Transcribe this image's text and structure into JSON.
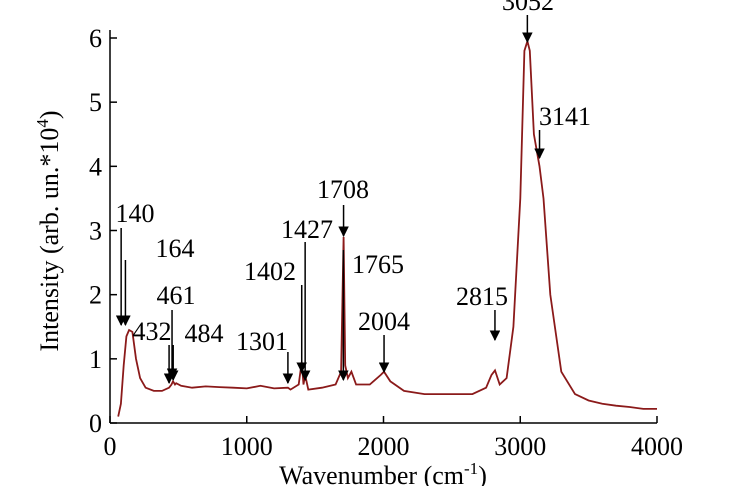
{
  "chart_data": {
    "type": "line",
    "x_label": {
      "text": "Wavenumber (cm",
      "sup": "-1",
      "end": ")"
    },
    "y_label": {
      "text": "Intensity (arb. un.*10",
      "sup": "4",
      "end": ")"
    },
    "x": [
      60,
      80,
      100,
      120,
      140,
      164,
      190,
      220,
      260,
      320,
      380,
      432,
      450,
      461,
      475,
      484,
      520,
      600,
      700,
      800,
      900,
      1000,
      1100,
      1200,
      1301,
      1320,
      1380,
      1402,
      1415,
      1427,
      1450,
      1550,
      1650,
      1690,
      1708,
      1720,
      1740,
      1765,
      1800,
      1900,
      1980,
      2004,
      2050,
      2150,
      2300,
      2500,
      2650,
      2750,
      2790,
      2815,
      2850,
      2900,
      2950,
      3000,
      3030,
      3052,
      3070,
      3100,
      3141,
      3170,
      3220,
      3300,
      3400,
      3500,
      3600,
      3700,
      3800,
      3900,
      4000
    ],
    "series": [
      {
        "color": "#8b1a1a",
        "values": [
          0.1,
          0.3,
          0.9,
          1.35,
          1.45,
          1.42,
          1.0,
          0.7,
          0.55,
          0.5,
          0.5,
          0.55,
          0.6,
          0.65,
          0.6,
          0.62,
          0.58,
          0.55,
          0.57,
          0.56,
          0.55,
          0.54,
          0.58,
          0.54,
          0.55,
          0.52,
          0.6,
          0.95,
          0.6,
          0.75,
          0.52,
          0.55,
          0.6,
          0.8,
          2.9,
          0.9,
          0.7,
          0.8,
          0.6,
          0.6,
          0.75,
          0.8,
          0.65,
          0.5,
          0.45,
          0.45,
          0.45,
          0.55,
          0.75,
          0.82,
          0.6,
          0.7,
          1.5,
          3.5,
          5.8,
          5.95,
          5.8,
          4.5,
          4.0,
          3.5,
          2.0,
          0.8,
          0.45,
          0.35,
          0.3,
          0.27,
          0.25,
          0.22,
          0.22
        ]
      }
    ],
    "annotations": [
      140,
      164,
      432,
      461,
      484,
      1301,
      1402,
      1427,
      1708,
      1765,
      2004,
      2815,
      3052,
      3141
    ],
    "xlim": [
      0,
      4000
    ],
    "xticks": [
      0,
      1000,
      2000,
      3000,
      4000
    ],
    "ylim": [
      0,
      6
    ],
    "yticks": [
      0,
      1,
      2,
      3,
      4,
      5,
      6
    ]
  }
}
